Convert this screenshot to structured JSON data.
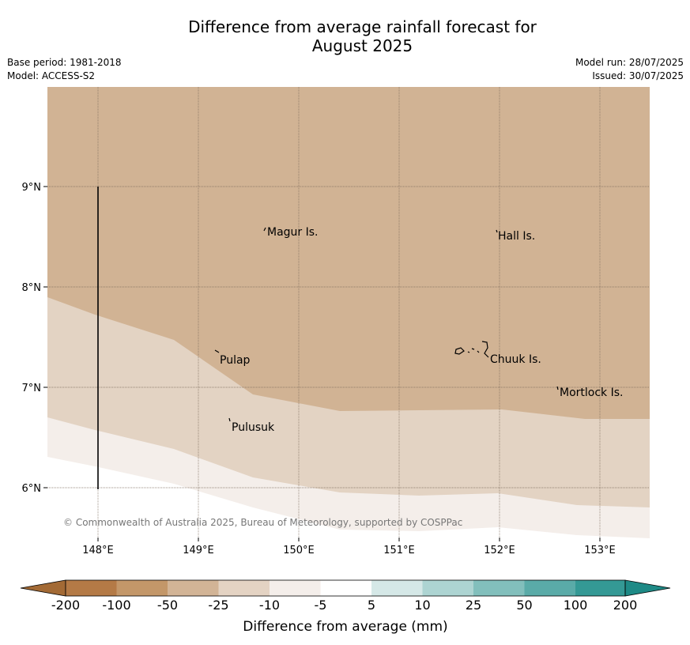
{
  "title": {
    "line1": "Difference from average rainfall forecast for",
    "line2": "August 2025"
  },
  "meta": {
    "base_period": "Base period: 1981-2018",
    "model": "Model: ACCESS-S2",
    "model_run": "Model run: 28/07/2025",
    "issued": "Issued: 30/07/2025"
  },
  "map": {
    "lon_ticks": [
      "148°E",
      "149°E",
      "150°E",
      "151°E",
      "152°E",
      "153°E"
    ],
    "lat_ticks": [
      "9°N",
      "8°N",
      "7°N",
      "6°N"
    ],
    "places": [
      "Magur Is.",
      "Hall Is.",
      "Pulap",
      "Chuuk Is.",
      "Mortlock Is.",
      "Pulusuk"
    ],
    "copyright": "© Commonwealth of Australia 2025, Bureau of Meteorology, supported by COSPPac",
    "zone_colors": {
      "-50_to_-25": "#d1b394",
      "-25_to_-10": "#e3d3c3",
      "-10_to_-5": "#f4eeea",
      "-5_to_5": "#ffffff"
    }
  },
  "colorbar": {
    "ticks": [
      "-200",
      "-100",
      "-50",
      "-25",
      "-10",
      "-5",
      "5",
      "10",
      "25",
      "50",
      "100",
      "200"
    ],
    "label": "Difference from average (mm)",
    "colors": [
      "#a36a35",
      "#b47a46",
      "#c39769",
      "#d2b496",
      "#e4d3c3",
      "#f4eeea",
      "#ffffff",
      "#d5e8e7",
      "#add4d2",
      "#82bfbc",
      "#5aaba8",
      "#349995",
      "#1e8a86"
    ]
  }
}
